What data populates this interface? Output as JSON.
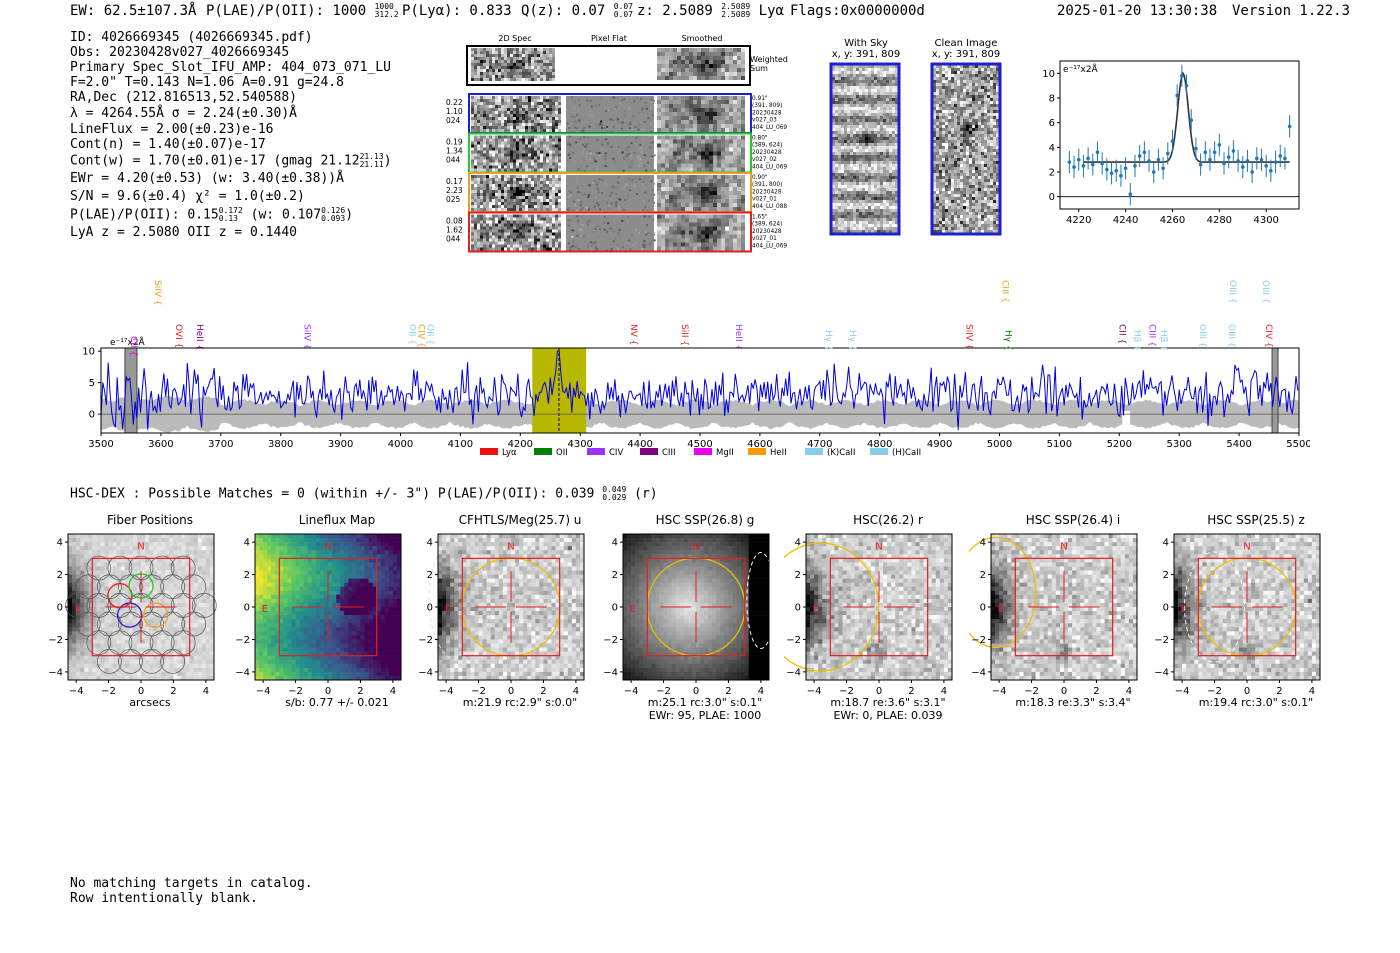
{
  "header": {
    "ew": "EW: 62.5±107.3Å",
    "plae_label": "P(LAE)/P(OII): 1000",
    "plae_hi": "1000",
    "plae_lo": "312.2",
    "plya": "P(Lyα): 0.833",
    "qz_label": "Q(z): 0.07",
    "qz_hi": "0.07",
    "qz_lo": "0.07",
    "z_label": "z: 2.5089",
    "z_hi": "2.5089",
    "z_lo": "2.5089",
    "line": "Lyα",
    "flags": "Flags:0x0000000d",
    "timestamp": "2025-01-20 13:30:38",
    "version": "Version 1.22.3"
  },
  "info": {
    "id": "ID: 4026669345 (4026669345.pdf)",
    "obs": "Obs: 20230428v027_4026669345",
    "primary": "Primary Spec_Slot_IFU_AMP: 404_073_071_LU",
    "params": "F=2.0\"  T=0.143  N=1.06  A=0.91  g=24.8",
    "radec": "RA,Dec (212.816513,52.540588)",
    "lambda_sigma": "λ = 4264.55Å  σ = 2.24(±0.30)Å",
    "lineflux": "LineFlux = 2.00(±0.23)e-16",
    "contn": "Cont(n) = 1.40(±0.07)e-17",
    "contw": "Cont(w) = 1.70(±0.01)e-17 (gmag 21.12",
    "contw_hi": "21.13",
    "contw_lo": "21.11",
    "ewr": "EWr = 4.20(±0.53) (w: 3.40(±0.38))Å",
    "sn": "S/N = 9.6(±0.4)  χ² = 1.0(±0.2)",
    "plae": "P(LAE)/P(OII): 0.15",
    "plae_hi": "0.172",
    "plae_lo": "0.13",
    "plae_w": "(w: 0.107",
    "plae_w_hi": "0.126",
    "plae_w_lo": "0.093",
    "z": "LyA z = 2.5080  OII z = 0.1440"
  },
  "cutouts2d": {
    "col_titles": [
      "2D Spec",
      "Pixel Flat",
      "Smoothed"
    ],
    "weighted_sum": "Weighted Sum",
    "rows": [
      {
        "left": [
          "0.22",
          "1.10",
          "024"
        ],
        "right": [
          "0.91\"",
          "(391, 809)",
          "20230428",
          "v027_03",
          "404_LU_069"
        ],
        "color": "#1f1fd0"
      },
      {
        "left": [
          "0.19",
          "1.34",
          "044"
        ],
        "right": [
          "0.80\"",
          "(389, 624)",
          "20230428",
          "v027_02",
          "404_LU_069"
        ],
        "color": "#22cc22"
      },
      {
        "left": [
          "0.17",
          "2.23",
          "025"
        ],
        "right": [
          "0.90\"",
          "(391, 800)",
          "20230428",
          "v027_01",
          "404_LU_088"
        ],
        "color": "#e8a020"
      },
      {
        "left": [
          "0.08",
          "1.62",
          "044"
        ],
        "right": [
          "1.65\"",
          "(389, 624)",
          "20230428",
          "v027_01",
          "404_LU_069"
        ],
        "color": "#e02020"
      }
    ]
  },
  "with_sky": {
    "title": "With Sky",
    "coords": "x, y: 391, 809"
  },
  "clean_image": {
    "title": "Clean Image",
    "coords": "x, y: 391, 809"
  },
  "fit_plot": {
    "unit": "e⁻¹⁷x2Å"
  },
  "spectrum": {
    "unit": "e⁻¹⁷x2Å",
    "line_labels": [
      "CII",
      "SiIV",
      "OVI",
      "HeII",
      "SiIV",
      "OII",
      "CIV",
      "OII",
      "NV",
      "SiII",
      "HeII",
      "Hγ",
      "Hγ",
      "SiIV",
      "CIII",
      "Hγ",
      "CII",
      "Hβ",
      "CIII",
      "Hβ",
      "OIII",
      "OIII",
      "OIII",
      "OIII",
      "CIV"
    ],
    "legend": [
      "Lyα",
      "OII",
      "CIV",
      "CIII",
      "MgII",
      "HeII",
      "(K)CaII",
      "(H)CaII"
    ]
  },
  "hsc_line": {
    "text": "HSC-DEX : Possible Matches = 0 (within +/- 3\")  P(LAE)/P(OII): 0.039",
    "hi": "0.049",
    "lo": "0.029",
    "suffix": "(r)"
  },
  "panels": [
    {
      "title": "Fiber Positions",
      "cap1": "arcsecs",
      "cap2": ""
    },
    {
      "title": "Lineflux Map",
      "cap1": "s/b: 0.77 +/- 0.021",
      "cap2": ""
    },
    {
      "title": "CFHTLS/Meg(25.7) u",
      "cap1": "m:21.9 rc:2.9\"  s:0.0\"",
      "cap2": ""
    },
    {
      "title": "HSC SSP(26.8) g",
      "cap1": "m:25.1 rc:3.0\"  s:0.1\"",
      "cap2": "EWr: 95, PLAE: 1000"
    },
    {
      "title": "HSC(26.2) r",
      "cap1": "m:18.7  re:3.6\"  s:3.1\"",
      "cap2": "EWr: 0, PLAE: 0.039"
    },
    {
      "title": "HSC SSP(26.4) i",
      "cap1": "m:18.3  re:3.3\"  s:3.4\"",
      "cap2": ""
    },
    {
      "title": "HSC SSP(25.5) z",
      "cap1": "m:19.4 rc:3.0\"  s:0.1\"",
      "cap2": ""
    }
  ],
  "footer": {
    "line1": "No matching targets in catalog.",
    "line2": "Row intentionally blank."
  },
  "chart_data": [
    {
      "type": "line",
      "title": "",
      "ylabel": "e⁻¹⁷x2Å",
      "xlim": [
        3500,
        5500
      ],
      "ylim": [
        -3,
        10.5
      ],
      "xticks": [
        3500,
        3600,
        3700,
        3800,
        3900,
        4000,
        4100,
        4200,
        4300,
        4400,
        4500,
        4600,
        4700,
        4800,
        4900,
        5000,
        5100,
        5200,
        5300,
        5400,
        5500
      ],
      "yticks": [
        0,
        5,
        10
      ],
      "highlight_range": [
        4220,
        4310
      ],
      "highlight_line": 4264.5,
      "masked_ranges": [
        [
          3540,
          3560
        ],
        [
          5455,
          5465
        ]
      ],
      "mean_level": 2.8,
      "noise_level": 2.0,
      "legend_position": "bottom"
    },
    {
      "type": "scatter",
      "title": "",
      "ylabel": "e⁻¹⁷x2Å",
      "xlim": [
        4212,
        4314
      ],
      "ylim": [
        -1,
        11
      ],
      "xticks": [
        4220,
        4240,
        4260,
        4280,
        4300
      ],
      "yticks": [
        0,
        2,
        4,
        6,
        8,
        10
      ],
      "model": {
        "continuum": 2.8,
        "peak": 10.0,
        "center": 4264.5,
        "sigma": 2.24
      },
      "points": [
        [
          4216,
          2.8
        ],
        [
          4218,
          2.4
        ],
        [
          4220,
          3.0
        ],
        [
          4222,
          2.5
        ],
        [
          4224,
          3.1
        ],
        [
          4226,
          2.6
        ],
        [
          4228,
          3.6
        ],
        [
          4230,
          2.7
        ],
        [
          4232,
          2.2
        ],
        [
          4234,
          1.9
        ],
        [
          4236,
          2.1
        ],
        [
          4238,
          1.7
        ],
        [
          4240,
          2.3
        ],
        [
          4242,
          0.2
        ],
        [
          4244,
          2.5
        ],
        [
          4246,
          3.3
        ],
        [
          4248,
          3.6
        ],
        [
          4250,
          2.9
        ],
        [
          4252,
          2.0
        ],
        [
          4254,
          3.0
        ],
        [
          4256,
          2.3
        ],
        [
          4258,
          3.5
        ],
        [
          4260,
          4.5
        ],
        [
          4262,
          8.2
        ],
        [
          4264,
          9.8
        ],
        [
          4266,
          9.0
        ],
        [
          4268,
          6.2
        ],
        [
          4270,
          3.9
        ],
        [
          4272,
          2.6
        ],
        [
          4274,
          3.6
        ],
        [
          4276,
          3.0
        ],
        [
          4278,
          3.6
        ],
        [
          4280,
          4.2
        ],
        [
          4282,
          2.7
        ],
        [
          4284,
          3.2
        ],
        [
          4286,
          3.7
        ],
        [
          4288,
          2.9
        ],
        [
          4290,
          2.4
        ],
        [
          4292,
          2.9
        ],
        [
          4294,
          2.0
        ],
        [
          4296,
          3.1
        ],
        [
          4298,
          3.0
        ],
        [
          4300,
          2.5
        ],
        [
          4302,
          2.1
        ],
        [
          4304,
          2.8
        ],
        [
          4306,
          3.3
        ],
        [
          4308,
          3.1
        ],
        [
          4310,
          5.7
        ]
      ],
      "errors": 0.9
    }
  ],
  "colors": {
    "spectrum": "#0000dd",
    "noise_band": "#bbbbbb",
    "highlight": "#b8b800",
    "fit_points": "#1f77b4",
    "aperture": "#e8c000",
    "box": "#e02020"
  }
}
